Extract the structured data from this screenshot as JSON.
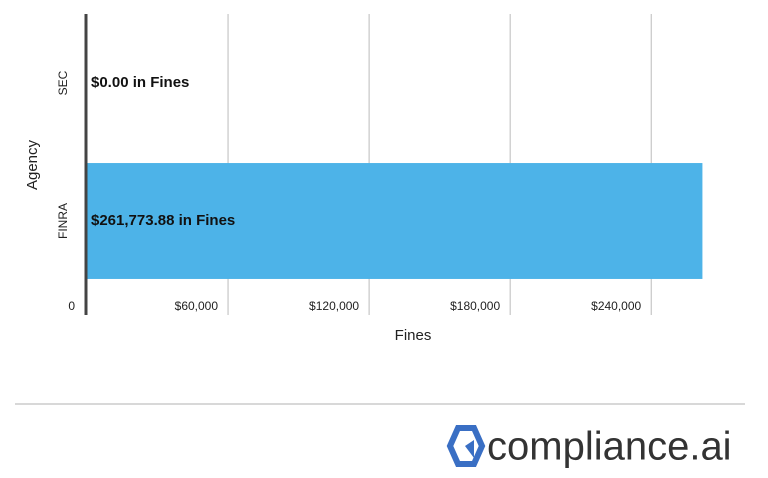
{
  "chart_data": {
    "type": "bar",
    "orientation": "horizontal",
    "x_label": "Fines",
    "y_label": "Agency",
    "categories": [
      "SEC",
      "FINRA"
    ],
    "values": [
      0,
      261773.88
    ],
    "value_labels": [
      "$0.00 in Fines",
      "$261,773.88 in Fines"
    ],
    "color": "#4db3e8",
    "xlim": [
      0,
      265000
    ],
    "xticks": [
      0,
      {
        "value": 60000,
        "label": "$60,000"
      },
      {
        "value": 120000,
        "label": "$120,000"
      },
      {
        "value": 180000,
        "label": "$180,000"
      },
      {
        "value": 240000,
        "label": "$240,000"
      }
    ],
    "grid": true
  },
  "brand": "compliance.ai"
}
